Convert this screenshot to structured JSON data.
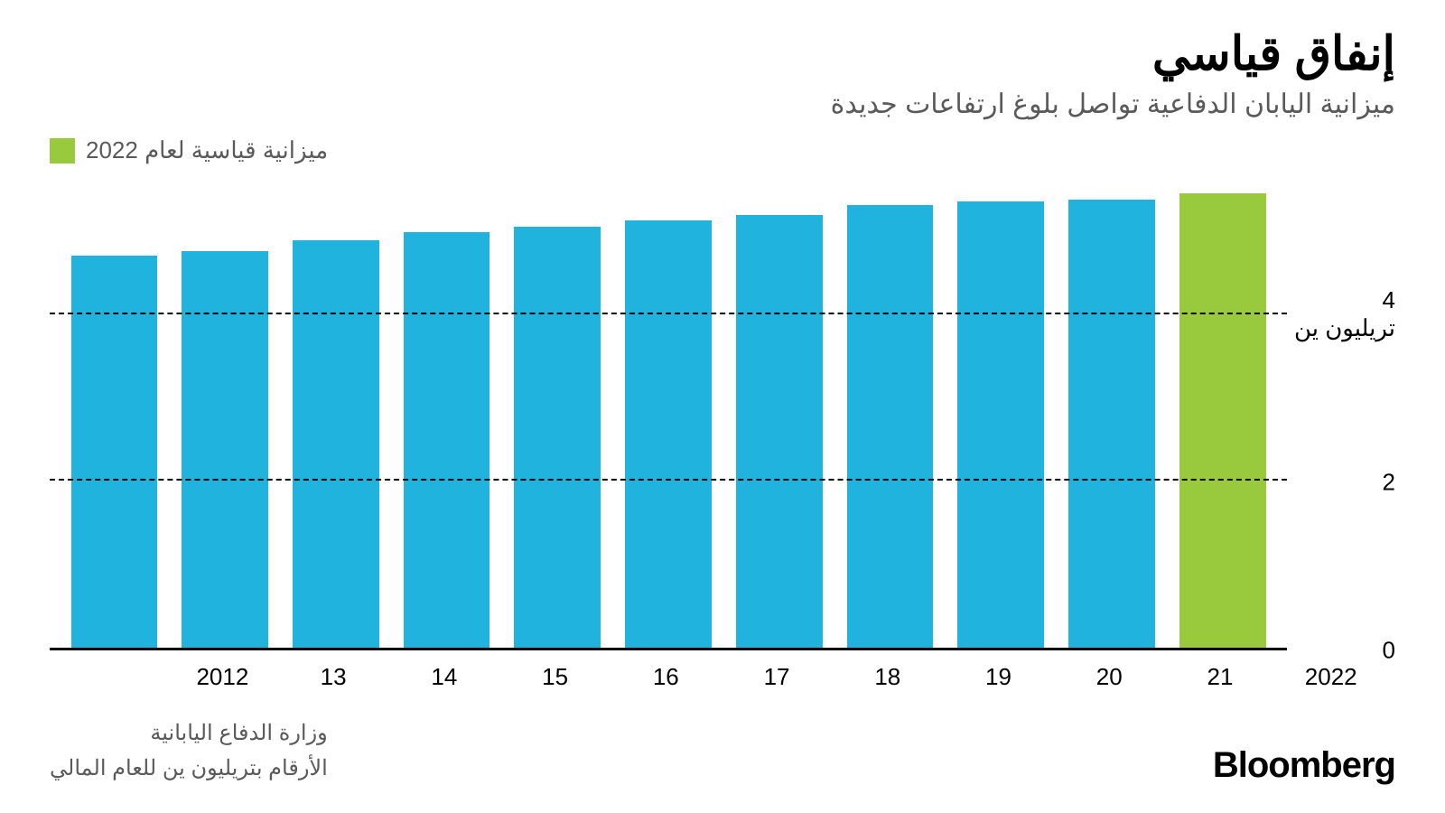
{
  "title": "إنفاق قياسي",
  "subtitle": "ميزانية اليابان الدفاعية تواصل بلوغ ارتفاعات جديدة",
  "legend": {
    "label": "ميزانية قياسية لعام 2022",
    "swatch_color": "#99c93c"
  },
  "chart": {
    "type": "bar",
    "background_color": "#ffffff",
    "bar_color_default": "#1fb3dd",
    "bar_color_highlight": "#99c93c",
    "axis_color": "#000000",
    "grid_color": "#000000",
    "grid_dash": "dashed",
    "ylim": [
      0,
      5.6
    ],
    "yticks": [
      0,
      2,
      4
    ],
    "ytick_labels": [
      "0",
      "2",
      "4\nتريليون ين"
    ],
    "bar_width_ratio": 0.78,
    "categories": [
      "2012",
      "13",
      "14",
      "15",
      "16",
      "17",
      "18",
      "19",
      "20",
      "21",
      "2022"
    ],
    "values": [
      4.7,
      4.75,
      4.88,
      4.98,
      5.05,
      5.12,
      5.19,
      5.31,
      5.35,
      5.37,
      5.45
    ],
    "highlight_index": 10,
    "xlabel_fontsize": 26,
    "ylabel_fontsize": 26,
    "title_fontsize": 52,
    "subtitle_fontsize": 30,
    "subtitle_color": "#5a5a5a"
  },
  "source": {
    "line1": "وزارة الدفاع اليابانية",
    "line2": "الأرقام بتريليون ين للعام المالي"
  },
  "brand": "Bloomberg"
}
